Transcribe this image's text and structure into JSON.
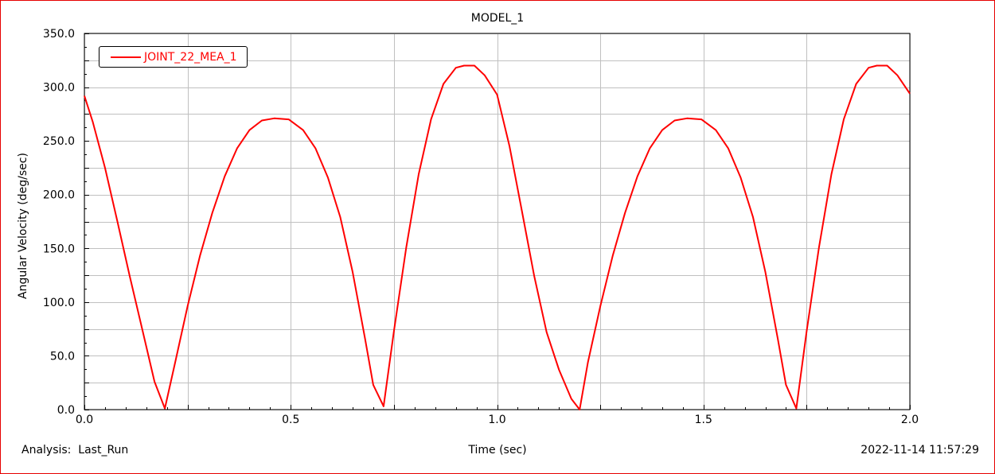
{
  "footer": {
    "analysis": "Analysis:  Last_Run",
    "timestamp": "2022-11-14 11:57:29"
  },
  "colors": {
    "frame": "#e60000",
    "series": "#ff0000",
    "grid": "#c0c0c0",
    "axis": "#000000"
  },
  "chart_data": {
    "type": "line",
    "title": "MODEL_1",
    "xlabel": "Time (sec)",
    "ylabel": "Angular Velocity (deg/sec)",
    "xlim": [
      0.0,
      2.0
    ],
    "ylim": [
      0.0,
      350.0
    ],
    "x_ticks": [
      "0.0",
      "0.5",
      "1.0",
      "1.5",
      "2.0"
    ],
    "y_ticks": [
      "0.0",
      "50.0",
      "100.0",
      "150.0",
      "200.0",
      "250.0",
      "300.0",
      "350.0"
    ],
    "grid": true,
    "legend_position": "top-left",
    "series": [
      {
        "name": "JOINT_22_MEA_1",
        "color": "#ff0000",
        "x": [
          0.0,
          0.02,
          0.05,
          0.08,
          0.11,
          0.14,
          0.17,
          0.195,
          0.22,
          0.25,
          0.28,
          0.31,
          0.34,
          0.37,
          0.4,
          0.43,
          0.46,
          0.495,
          0.53,
          0.56,
          0.59,
          0.62,
          0.65,
          0.68,
          0.7,
          0.725,
          0.75,
          0.78,
          0.81,
          0.84,
          0.87,
          0.9,
          0.92,
          0.945,
          0.97,
          1.0,
          1.03,
          1.06,
          1.09,
          1.12,
          1.15,
          1.18,
          1.2,
          1.22,
          1.25,
          1.28,
          1.31,
          1.34,
          1.37,
          1.4,
          1.43,
          1.46,
          1.495,
          1.53,
          1.56,
          1.59,
          1.62,
          1.65,
          1.68,
          1.7,
          1.725,
          1.75,
          1.78,
          1.81,
          1.84,
          1.87,
          1.9,
          1.92,
          1.945,
          1.97,
          2.0
        ],
        "values": [
          292,
          268,
          225,
          175,
          124,
          75,
          26,
          1,
          44,
          96,
          143,
          183,
          217,
          243,
          260,
          269,
          271,
          270,
          260,
          243,
          216,
          179,
          128,
          66,
          23,
          3,
          73,
          151,
          219,
          270,
          303,
          318,
          320,
          320,
          311,
          293,
          245,
          185,
          124,
          72,
          37,
          10,
          0,
          44,
          96,
          143,
          183,
          217,
          243,
          260,
          269,
          271,
          270,
          260,
          243,
          216,
          179,
          128,
          66,
          23,
          1,
          73,
          151,
          219,
          270,
          303,
          318,
          320,
          320,
          311,
          294
        ]
      }
    ]
  }
}
